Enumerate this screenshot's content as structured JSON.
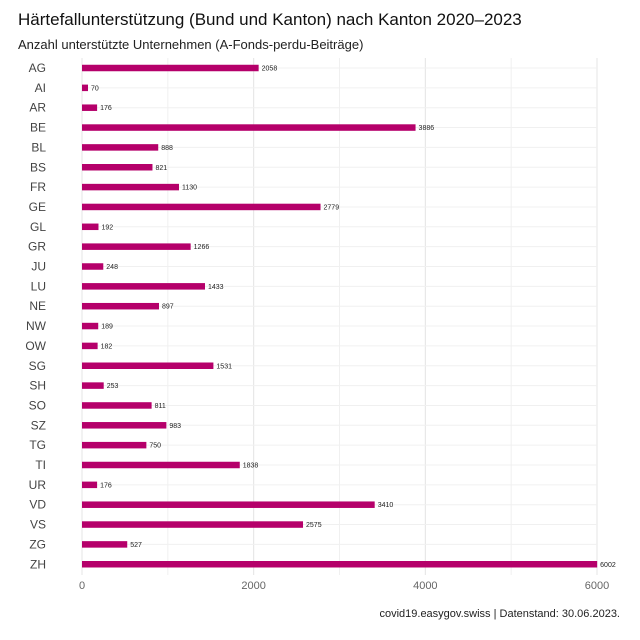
{
  "chart_data": {
    "type": "bar",
    "orientation": "horizontal",
    "title": "Härtefallunterstützung (Bund und Kanton) nach Kanton 2020–2023",
    "subtitle": "Anzahl unterstützte Unternehmen (A-Fonds-perdu-Beiträge)",
    "caption": "covid19.easygov.swiss | Datenstand: 30.06.2023.",
    "xlabel": "",
    "ylabel": "",
    "xlim": [
      0,
      6000
    ],
    "x_ticks": [
      0,
      2000,
      4000,
      6000
    ],
    "x_tick_labels": [
      "0",
      "2000",
      "4000",
      "6000"
    ],
    "grid": true,
    "bar_color": "#B5006A",
    "categories": [
      "AG",
      "AI",
      "AR",
      "BE",
      "BL",
      "BS",
      "FR",
      "GE",
      "GL",
      "GR",
      "JU",
      "LU",
      "NE",
      "NW",
      "OW",
      "SG",
      "SH",
      "SO",
      "SZ",
      "TG",
      "TI",
      "UR",
      "VD",
      "VS",
      "ZG",
      "ZH"
    ],
    "values": [
      2058,
      70,
      176,
      3886,
      888,
      821,
      1130,
      2779,
      192,
      1266,
      248,
      1433,
      897,
      189,
      182,
      1531,
      253,
      811,
      983,
      750,
      1838,
      176,
      3410,
      2575,
      527,
      6002
    ],
    "value_labels": [
      "2058",
      "70",
      "176",
      "3886",
      "888",
      "821",
      "1130",
      "2779",
      "192",
      "1266",
      "248",
      "1433",
      "897",
      "189",
      "182",
      "1531",
      "253",
      "811",
      "983",
      "750",
      "1838",
      "176",
      "3410",
      "2575",
      "527",
      "6002"
    ]
  }
}
